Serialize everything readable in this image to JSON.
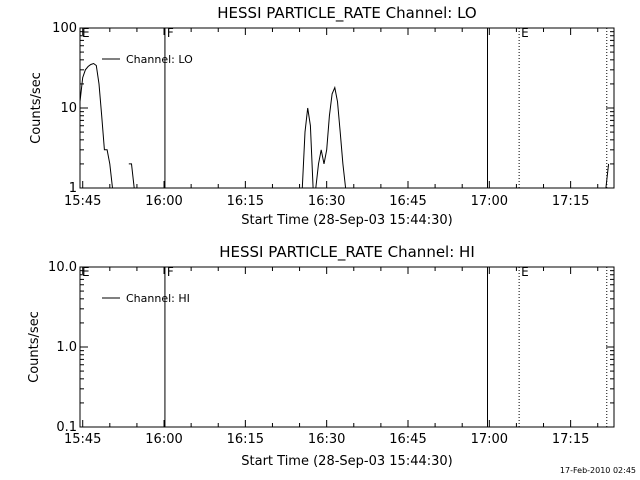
{
  "footer_text": "17-Feb-2010 02:45",
  "colors": {
    "background": "#ffffff",
    "ink": "#000000"
  },
  "chart_data": [
    {
      "type": "line",
      "title": "HESSI PARTICLE_RATE Channel: LO",
      "xlabel": "Start Time (28-Sep-03 15:44:30)",
      "ylabel": "Counts/sec",
      "yscale": "log",
      "ylim": [
        1,
        100
      ],
      "xlim": [
        "15:44:30",
        "17:23:00"
      ],
      "xticks": [
        "15:45",
        "16:00",
        "16:15",
        "16:30",
        "16:45",
        "17:00",
        "17:15"
      ],
      "yticks": [
        "1",
        "10",
        "100"
      ],
      "legend": {
        "position": "top-left",
        "entries": [
          "Channel: LO"
        ]
      },
      "grid": false,
      "series": [
        {
          "name": "Channel: LO",
          "x": [
            "15:44:30",
            "15:45:00",
            "15:45:30",
            "15:46:00",
            "15:46:30",
            "15:47:00",
            "15:47:30",
            "15:48:00",
            "15:48:30",
            "15:49:00",
            "15:49:30",
            "15:50:00",
            "15:50:30",
            "15:51:00",
            "15:51:30",
            "15:52:00",
            "15:53:30",
            "15:54:00",
            "15:54:30",
            "16:25:30",
            "16:26:00",
            "16:26:30",
            "16:27:00",
            "16:27:30",
            "16:28:00",
            "16:28:30",
            "16:29:00",
            "16:29:30",
            "16:30:00",
            "16:30:30",
            "16:31:00",
            "16:31:30",
            "16:32:00",
            "16:32:30",
            "16:33:00",
            "16:33:30",
            "17:21:30",
            "17:22:00"
          ],
          "y": [
            12,
            24,
            30,
            33,
            35,
            36,
            34,
            20,
            8,
            3,
            3,
            2,
            1,
            1,
            1,
            1,
            2,
            2,
            1,
            1,
            5,
            10,
            6,
            1,
            1,
            2,
            3,
            2,
            3,
            8,
            15,
            18,
            12,
            5,
            2,
            1,
            1,
            2
          ]
        }
      ],
      "annotations": [
        {
          "text": "E",
          "x": "15:44:30",
          "line": "none"
        },
        {
          "text": "F",
          "x": "16:00:10",
          "line": "solid"
        },
        {
          "text": "",
          "x": "16:59:40",
          "line": "solid"
        },
        {
          "text": "E",
          "x": "17:05:30",
          "line": "dotted"
        },
        {
          "text": "",
          "x": "17:21:40",
          "line": "dotted"
        }
      ]
    },
    {
      "type": "line",
      "title": "HESSI PARTICLE_RATE Channel: HI",
      "xlabel": "Start Time (28-Sep-03 15:44:30)",
      "ylabel": "Counts/sec",
      "yscale": "log",
      "ylim": [
        0.1,
        10
      ],
      "xlim": [
        "15:44:30",
        "17:23:00"
      ],
      "xticks": [
        "15:45",
        "16:00",
        "16:15",
        "16:30",
        "16:45",
        "17:00",
        "17:15"
      ],
      "yticks": [
        "0.1",
        "1.0",
        "10.0"
      ],
      "legend": {
        "position": "top-left",
        "entries": [
          "Channel: HI"
        ]
      },
      "grid": false,
      "series": [
        {
          "name": "Channel: HI",
          "x": [],
          "y": []
        }
      ],
      "annotations": [
        {
          "text": "E",
          "x": "15:44:30",
          "line": "none"
        },
        {
          "text": "F",
          "x": "16:00:10",
          "line": "solid"
        },
        {
          "text": "",
          "x": "16:59:40",
          "line": "solid"
        },
        {
          "text": "E",
          "x": "17:05:30",
          "line": "dotted"
        },
        {
          "text": "",
          "x": "17:21:40",
          "line": "dotted"
        }
      ]
    }
  ]
}
